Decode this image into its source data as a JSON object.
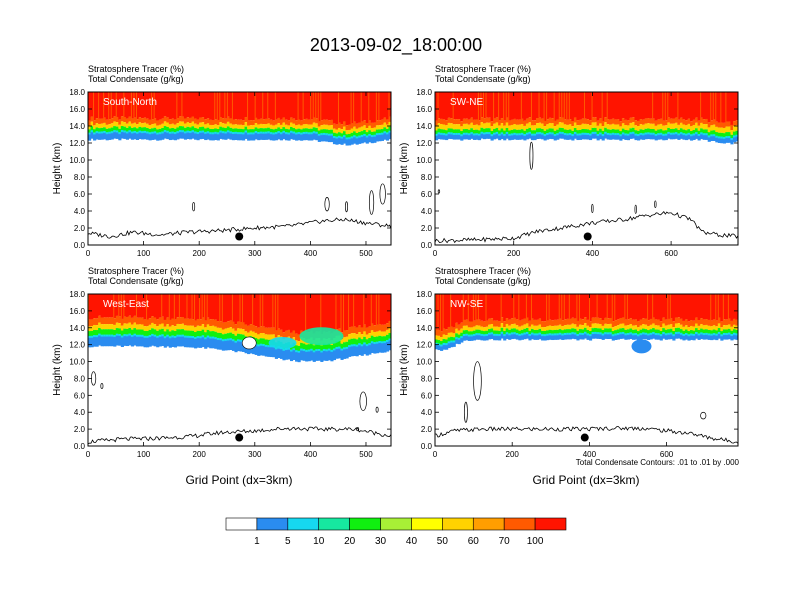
{
  "title": "2013-09-02_18:00:00",
  "chart_data": [
    {
      "type": "heatmap",
      "panel_label": "South-North",
      "title_line1": "Stratosphere Tracer   (%)",
      "title_line2": "Total Condensate   (g/kg)",
      "ylabel": "Height (km)",
      "xlabel": "",
      "xlim": [
        0,
        545
      ],
      "ylim": [
        0,
        18
      ],
      "xticks": [
        "0",
        "100",
        "200",
        "300",
        "400",
        "500"
      ],
      "xtick_values": [
        0,
        100,
        200,
        300,
        400,
        500
      ],
      "yticks": [
        "0.0",
        "2.0",
        "4.0",
        "6.0",
        "8.0",
        "10.0",
        "12.0",
        "14.0",
        "16.0",
        "18.0"
      ],
      "tracer_band_km": {
        "blue_base": 12.4,
        "green": 13.2,
        "yellow": 13.8,
        "orange": 14.3,
        "red": 14.9
      },
      "dip": {
        "center": 470,
        "width": 50,
        "depth_km": 0.6
      },
      "terrain_km": [
        [
          0,
          1.4
        ],
        [
          40,
          1.0
        ],
        [
          80,
          1.5
        ],
        [
          130,
          1.2
        ],
        [
          180,
          1.5
        ],
        [
          240,
          1.7
        ],
        [
          300,
          2.0
        ],
        [
          360,
          2.2
        ],
        [
          420,
          2.8
        ],
        [
          460,
          3.0
        ],
        [
          500,
          2.6
        ],
        [
          545,
          2.2
        ]
      ],
      "marker": {
        "x": 272,
        "y_km": 1.0
      },
      "condensate_contours": [
        {
          "x": 190,
          "y_km": 4.5,
          "rx": 2,
          "ry_km": 0.5
        },
        {
          "x": 430,
          "y_km": 4.8,
          "rx": 4,
          "ry_km": 0.8
        },
        {
          "x": 465,
          "y_km": 4.5,
          "rx": 2,
          "ry_km": 0.6
        },
        {
          "x": 510,
          "y_km": 5.0,
          "rx": 4,
          "ry_km": 1.4
        },
        {
          "x": 530,
          "y_km": 6.0,
          "rx": 5,
          "ry_km": 1.2
        }
      ]
    },
    {
      "type": "heatmap",
      "panel_label": "SW-NE",
      "title_line1": "Stratosphere Tracer   (%)",
      "title_line2": "Total Condensate   (g/kg)",
      "ylabel": "Height (km)",
      "xlabel": "",
      "xlim": [
        0,
        770
      ],
      "ylim": [
        0,
        18
      ],
      "xticks": [
        "0",
        "200",
        "400",
        "600"
      ],
      "xtick_values": [
        0,
        200,
        400,
        600
      ],
      "yticks": [
        "0.0",
        "2.0",
        "4.0",
        "6.0",
        "8.0",
        "10.0",
        "12.0",
        "14.0",
        "16.0",
        "18.0"
      ],
      "tracer_band_km": {
        "blue_base": 12.4,
        "green": 13.0,
        "yellow": 13.6,
        "orange": 14.2,
        "red": 14.8
      },
      "dip": {
        "center": 740,
        "width": 40,
        "depth_km": 0.5
      },
      "terrain_km": [
        [
          0,
          0.5
        ],
        [
          100,
          0.6
        ],
        [
          200,
          0.8
        ],
        [
          260,
          1.6
        ],
        [
          320,
          2.0
        ],
        [
          400,
          2.6
        ],
        [
          480,
          3.0
        ],
        [
          540,
          3.5
        ],
        [
          600,
          3.8
        ],
        [
          650,
          3.0
        ],
        [
          680,
          1.5
        ],
        [
          720,
          1.2
        ],
        [
          770,
          1.0
        ]
      ],
      "marker": {
        "x": 388,
        "y_km": 1.0
      },
      "condensate_contours": [
        {
          "x": 10,
          "y_km": 6.3,
          "rx": 2,
          "ry_km": 0.2
        },
        {
          "x": 245,
          "y_km": 10.5,
          "rx": 4,
          "ry_km": 1.6
        },
        {
          "x": 400,
          "y_km": 4.3,
          "rx": 2,
          "ry_km": 0.5
        },
        {
          "x": 510,
          "y_km": 4.2,
          "rx": 2,
          "ry_km": 0.5
        },
        {
          "x": 560,
          "y_km": 4.8,
          "rx": 2,
          "ry_km": 0.4
        }
      ]
    },
    {
      "type": "heatmap",
      "panel_label": "West-East",
      "title_line1": "Stratosphere Tracer   (%)",
      "title_line2": "Total Condensate   (g/kg)",
      "ylabel": "Height (km)",
      "xlabel": "Grid Point (dx=3km)",
      "xlim": [
        0,
        545
      ],
      "ylim": [
        0,
        18
      ],
      "xticks": [
        "0",
        "100",
        "200",
        "300",
        "400",
        "500"
      ],
      "xtick_values": [
        0,
        100,
        200,
        300,
        400,
        500
      ],
      "yticks": [
        "0.0",
        "2.0",
        "4.0",
        "6.0",
        "8.0",
        "10.0",
        "12.0",
        "14.0",
        "16.0",
        "18.0"
      ],
      "tracer_band_km": {
        "blue_base": 11.8,
        "green": 13.0,
        "yellow": 13.8,
        "orange": 14.4,
        "red": 15.2
      },
      "dip": {
        "center": 400,
        "width": 130,
        "depth_km": 1.8
      },
      "terrain_km": [
        [
          0,
          0.5
        ],
        [
          60,
          0.8
        ],
        [
          120,
          0.9
        ],
        [
          180,
          1.1
        ],
        [
          240,
          1.6
        ],
        [
          300,
          1.8
        ],
        [
          360,
          2.1
        ],
        [
          420,
          2.0
        ],
        [
          480,
          2.0
        ],
        [
          520,
          1.5
        ],
        [
          545,
          1.2
        ]
      ],
      "marker": {
        "x": 272,
        "y_km": 1.0
      },
      "condensate_contours": [
        {
          "x": 10,
          "y_km": 8.0,
          "rx": 4,
          "ry_km": 0.8
        },
        {
          "x": 25,
          "y_km": 7.1,
          "rx": 2,
          "ry_km": 0.3
        },
        {
          "x": 495,
          "y_km": 5.3,
          "rx": 6,
          "ry_km": 1.1
        },
        {
          "x": 520,
          "y_km": 4.3,
          "rx": 2,
          "ry_km": 0.3
        },
        {
          "x": 485,
          "y_km": 2.0,
          "rx": 2,
          "ry_km": 0.2
        }
      ]
    },
    {
      "type": "heatmap",
      "panel_label": "NW-SE",
      "title_line1": "Stratosphere Tracer   (%)",
      "title_line2": "Total Condensate   (g/kg)",
      "ylabel": "Height (km)",
      "xlabel": "Grid Point (dx=3km)",
      "footnote": "Total Condensate Contours: .01 to .01 by .000",
      "xlim": [
        0,
        785
      ],
      "ylim": [
        0,
        18
      ],
      "xticks": [
        "0",
        "200",
        "400",
        "600"
      ],
      "xtick_values": [
        0,
        200,
        400,
        600
      ],
      "yticks": [
        "0.0",
        "2.0",
        "4.0",
        "6.0",
        "8.0",
        "10.0",
        "12.0",
        "14.0",
        "16.0",
        "18.0"
      ],
      "tracer_band_km": {
        "blue_base": 12.6,
        "green": 13.2,
        "yellow": 13.8,
        "orange": 14.3,
        "red": 15.0
      },
      "dip": {
        "center": 20,
        "width": 40,
        "depth_km": 1.3
      },
      "terrain_km": [
        [
          0,
          1.2
        ],
        [
          50,
          1.8
        ],
        [
          120,
          2.0
        ],
        [
          200,
          2.0
        ],
        [
          300,
          2.0
        ],
        [
          380,
          2.0
        ],
        [
          460,
          2.1
        ],
        [
          540,
          2.1
        ],
        [
          600,
          1.8
        ],
        [
          660,
          1.5
        ],
        [
          720,
          0.9
        ],
        [
          785,
          0.5
        ]
      ],
      "marker": {
        "x": 388,
        "y_km": 1.0
      },
      "condensate_contours": [
        {
          "x": 110,
          "y_km": 7.7,
          "rx": 10,
          "ry_km": 2.3
        },
        {
          "x": 80,
          "y_km": 4.0,
          "rx": 4,
          "ry_km": 1.2
        },
        {
          "x": 695,
          "y_km": 3.6,
          "rx": 7,
          "ry_km": 0.4
        }
      ]
    }
  ],
  "colorbar": {
    "labels": [
      "1",
      "5",
      "10",
      "20",
      "30",
      "40",
      "50",
      "60",
      "70",
      "100"
    ],
    "colors": [
      "#ffffff",
      "#2a8cf0",
      "#16d8f0",
      "#16e8a0",
      "#10f010",
      "#a8f036",
      "#ffff00",
      "#ffd200",
      "#ff9e00",
      "#ff5a00",
      "#ff1400"
    ]
  }
}
